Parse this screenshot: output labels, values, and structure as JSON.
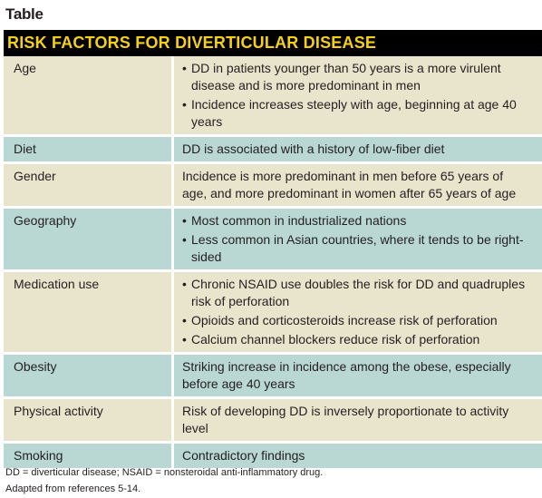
{
  "label": "Table",
  "title": "RISK FACTORS FOR DIVERTICULAR DISEASE",
  "rows": [
    {
      "factor": "Age",
      "bullets": [
        "DD in patients younger than 50 years is a more virulent disease and is more predominant in men",
        "Incidence increases steeply with age, beginning at age 40 years"
      ]
    },
    {
      "factor": "Diet",
      "text": "DD is associated with a history of low-fiber diet"
    },
    {
      "factor": "Gender",
      "text": "Incidence is more predominant in men before 65 years of age, and more predominant in women after 65 years of age"
    },
    {
      "factor": "Geography",
      "bullets": [
        "Most common in industrialized nations",
        "Less common in Asian countries, where it tends to be right-sided"
      ]
    },
    {
      "factor": "Medication use",
      "bullets": [
        "Chronic NSAID use doubles the risk for DD and quadruples risk of perforation",
        "Opioids and corticosteroids increase risk of perforation",
        "Calcium channel blockers reduce risk of perforation"
      ]
    },
    {
      "factor": "Obesity",
      "text": "Striking increase in incidence among the obese, especially before age 40 years"
    },
    {
      "factor": "Physical activity",
      "text": "Risk of developing DD is inversely proportionate to activity level"
    },
    {
      "factor": "Smoking",
      "text": "Contradictory findings"
    }
  ],
  "footnote_abbrev": "DD = diverticular disease; NSAID = nonsteroidal anti-inflammatory drug.",
  "footnote_refs": "Adapted from references 5-14.",
  "colors": {
    "title_bg": "#000000",
    "title_text": "#f5d116",
    "row_light": "#e9e5cd",
    "row_teal": "#b9d7d3"
  },
  "bullet_glyph": "•"
}
